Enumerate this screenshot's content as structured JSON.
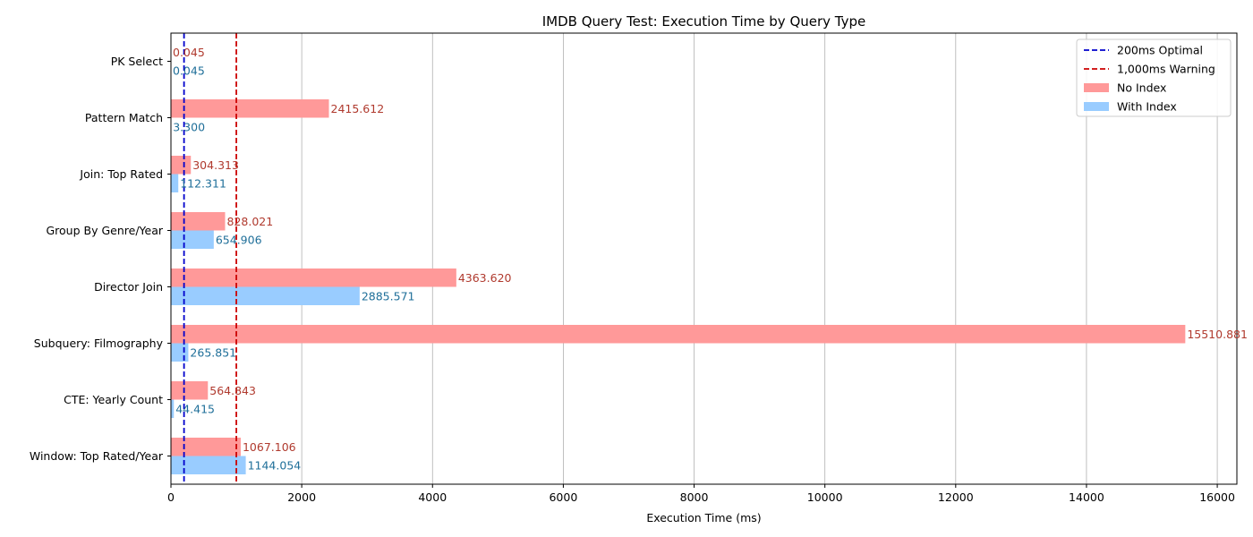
{
  "chart_data": {
    "type": "bar",
    "orientation": "horizontal",
    "title": "IMDB Query Test: Execution Time by Query Type",
    "xlabel": "Execution Time (ms)",
    "ylabel": "",
    "xlim": [
      0,
      16300
    ],
    "xticks": [
      0,
      2000,
      4000,
      6000,
      8000,
      10000,
      12000,
      14000,
      16000
    ],
    "grid": "x",
    "legend_position": "top-right",
    "categories": [
      "PK Select",
      "Pattern Match",
      "Join: Top Rated",
      "Group By Genre/Year",
      "Director Join",
      "Subquery: Filmography",
      "CTE: Yearly Count",
      "Window: Top Rated/Year"
    ],
    "series": [
      {
        "name": "No Index",
        "color": "#ff9999",
        "label_color": "#b03a2e",
        "values": [
          0.045,
          2415.612,
          304.313,
          828.021,
          4363.62,
          15510.881,
          564.843,
          1067.106
        ],
        "labels": [
          "0.045",
          "2415.612",
          "304.313",
          "828.021",
          "4363.620",
          "15510.881",
          "564.843",
          "1067.106"
        ]
      },
      {
        "name": "With Index",
        "color": "#99ccff",
        "label_color": "#1f6f99",
        "values": [
          0.045,
          3.3,
          112.311,
          654.906,
          2885.571,
          265.851,
          44.415,
          1144.054
        ],
        "labels": [
          "0.045",
          "3.300",
          "112.311",
          "654.906",
          "2885.571",
          "265.851",
          "44.415",
          "1144.054"
        ]
      }
    ],
    "reference_lines": [
      {
        "name": "200ms Optimal",
        "value": 200,
        "color": "#0000cc"
      },
      {
        "name": "1,000ms Warning",
        "value": 1000,
        "color": "#cc0000"
      }
    ]
  }
}
